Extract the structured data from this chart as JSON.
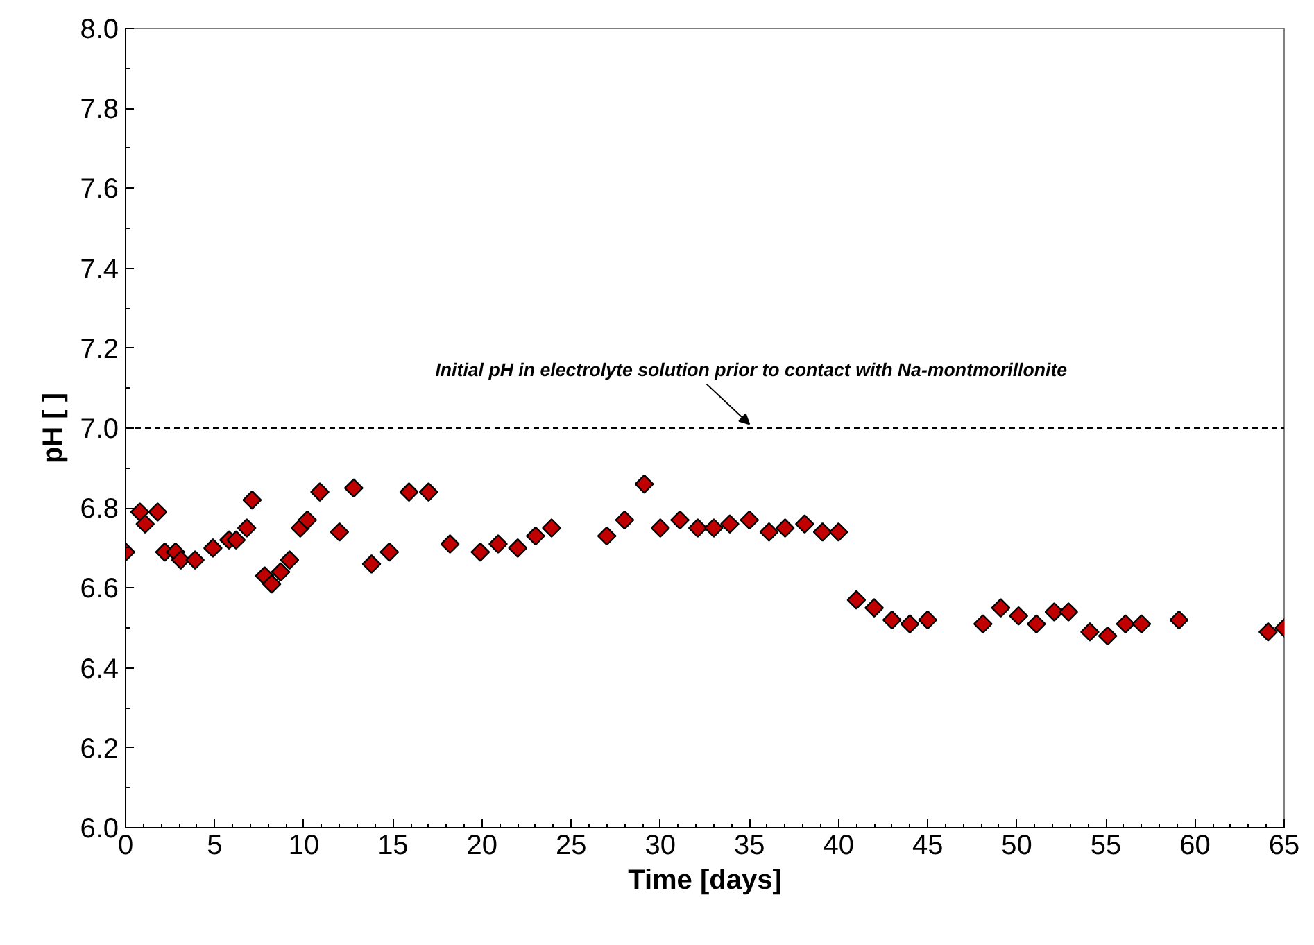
{
  "chart_data": {
    "type": "scatter",
    "xlabel": "Time [days]",
    "ylabel": "pH [ ]",
    "x": [
      0,
      0.8,
      1.1,
      1.8,
      2.2,
      2.8,
      3.1,
      3.9,
      4.9,
      5.8,
      6.2,
      6.8,
      7.1,
      7.8,
      8.2,
      8.7,
      9.2,
      9.8,
      10.2,
      10.9,
      12.0,
      12.8,
      13.8,
      14.8,
      15.9,
      17.0,
      18.2,
      19.9,
      20.9,
      22.0,
      23.0,
      23.9,
      27.0,
      28.0,
      29.1,
      30.0,
      31.1,
      32.1,
      33.0,
      33.9,
      35.0,
      36.1,
      37.0,
      38.1,
      39.1,
      40.0,
      41.0,
      42.0,
      43.0,
      44.0,
      45.0,
      48.1,
      49.1,
      50.1,
      51.1,
      52.1,
      52.9,
      54.1,
      55.1,
      56.1,
      57.0,
      59.1,
      64.1,
      65.0
    ],
    "series": [
      {
        "color": "#c00000",
        "values": [
          6.69,
          6.79,
          6.76,
          6.79,
          6.69,
          6.69,
          6.67,
          6.67,
          6.7,
          6.72,
          6.72,
          6.75,
          6.82,
          6.63,
          6.61,
          6.64,
          6.67,
          6.75,
          6.77,
          6.84,
          6.74,
          6.85,
          6.66,
          6.69,
          6.84,
          6.84,
          6.71,
          6.69,
          6.71,
          6.7,
          6.73,
          6.75,
          6.73,
          6.77,
          6.86,
          6.75,
          6.77,
          6.75,
          6.75,
          6.76,
          6.77,
          6.74,
          6.75,
          6.76,
          6.74,
          6.74,
          6.57,
          6.55,
          6.52,
          6.51,
          6.52,
          6.51,
          6.55,
          6.53,
          6.51,
          6.54,
          6.54,
          6.49,
          6.48,
          6.51,
          6.51,
          6.52,
          6.49,
          6.5
        ]
      }
    ],
    "marker": "diamond",
    "grid": false,
    "xlim": [
      0,
      65
    ],
    "xticks": [
      0,
      5,
      10,
      15,
      20,
      25,
      30,
      35,
      40,
      45,
      50,
      55,
      60,
      65
    ],
    "ylim": [
      6.0,
      8.0
    ],
    "yticks": [
      {
        "value": 6.0,
        "label": "6.0"
      },
      {
        "value": 6.2,
        "label": "6.2"
      },
      {
        "value": 6.4,
        "label": "6.4"
      },
      {
        "value": 6.6,
        "label": "6.6"
      },
      {
        "value": 6.8,
        "label": "6.8"
      },
      {
        "value": 7.0,
        "label": "7.0"
      },
      {
        "value": 7.2,
        "label": "7.2"
      },
      {
        "value": 7.4,
        "label": "7.4"
      },
      {
        "value": 7.6,
        "label": "7.6"
      },
      {
        "value": 7.8,
        "label": "7.8"
      },
      {
        "value": 8.0,
        "label": "8.0"
      }
    ],
    "ref_lines": [
      {
        "axis": "y",
        "value": 7.0,
        "label": "Initial pH in electrolyte solution prior to contact with Na-montmorillonite",
        "line_style": "dashed",
        "color": "#000000"
      }
    ]
  }
}
